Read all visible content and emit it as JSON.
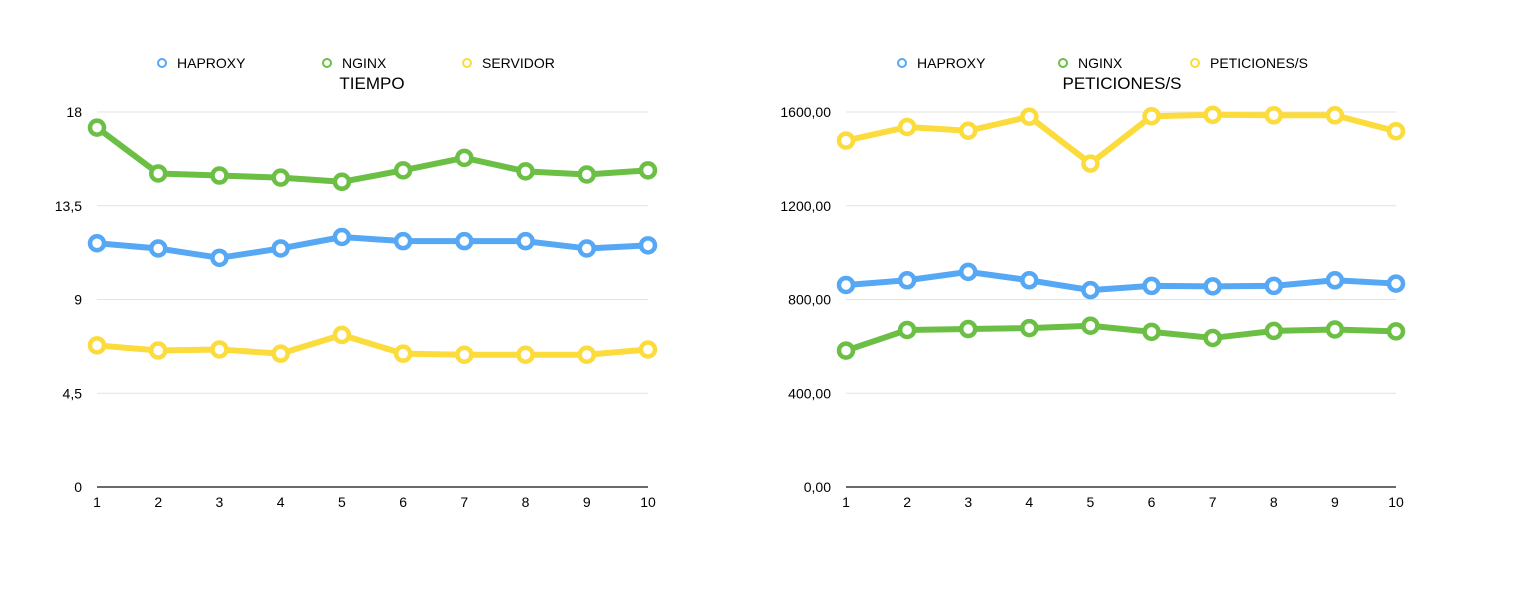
{
  "chart_data": [
    {
      "type": "line",
      "title": "TIEMPO",
      "xlabel": "",
      "ylabel": "",
      "categories": [
        "1",
        "2",
        "3",
        "4",
        "5",
        "6",
        "7",
        "8",
        "9",
        "10"
      ],
      "ylim": [
        0,
        18
      ],
      "yticks": [
        0,
        4.5,
        9,
        13.5,
        18
      ],
      "ytick_labels": [
        "0",
        "4,5",
        "9",
        "13,5",
        "18"
      ],
      "grid": true,
      "legend_position": "top",
      "series": [
        {
          "name": "HAPROXY",
          "color": "#56a8f5",
          "values": [
            11.7,
            11.45,
            11.0,
            11.45,
            12.0,
            11.8,
            11.8,
            11.8,
            11.45,
            11.6
          ]
        },
        {
          "name": "NGINX",
          "color": "#6cbf45",
          "values": [
            17.25,
            15.05,
            14.95,
            14.85,
            14.65,
            15.2,
            15.8,
            15.15,
            15.0,
            15.2
          ]
        },
        {
          "name": "SERVIDOR",
          "color": "#fbdc3c",
          "values": [
            6.8,
            6.55,
            6.6,
            6.4,
            7.3,
            6.4,
            6.35,
            6.35,
            6.35,
            6.6
          ]
        }
      ]
    },
    {
      "type": "line",
      "title": "PETICIONES/S",
      "xlabel": "",
      "ylabel": "",
      "categories": [
        "1",
        "2",
        "3",
        "4",
        "5",
        "6",
        "7",
        "8",
        "9",
        "10"
      ],
      "ylim": [
        0,
        1600
      ],
      "yticks": [
        0,
        400,
        800,
        1200,
        1600
      ],
      "ytick_labels": [
        "0,00",
        "400,00",
        "800,00",
        "1200,00",
        "1600,00"
      ],
      "grid": true,
      "legend_position": "top",
      "series": [
        {
          "name": "HAPROXY",
          "color": "#56a8f5",
          "values": [
            862,
            882,
            918,
            882,
            840,
            858,
            856,
            858,
            882,
            868
          ]
        },
        {
          "name": "NGINX",
          "color": "#6cbf45",
          "values": [
            582,
            670,
            674,
            678,
            688,
            662,
            636,
            666,
            672,
            664
          ]
        },
        {
          "name": "PETICIONES/S",
          "color": "#fbdc3c",
          "values": [
            1478,
            1536,
            1520,
            1580,
            1380,
            1582,
            1588,
            1586,
            1586,
            1518
          ]
        }
      ]
    }
  ]
}
